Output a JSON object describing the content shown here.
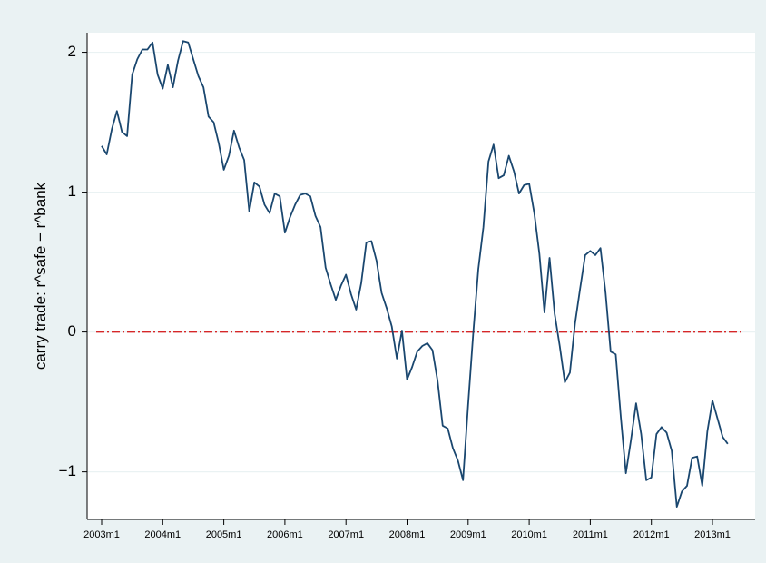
{
  "chart_data": {
    "type": "line",
    "y_label": "carry trade: r^safe − r^bank",
    "x": [
      "2003m1",
      "2003m2",
      "2003m3",
      "2003m4",
      "2003m5",
      "2003m6",
      "2003m7",
      "2003m8",
      "2003m9",
      "2003m10",
      "2003m11",
      "2003m12",
      "2004m1",
      "2004m2",
      "2004m3",
      "2004m4",
      "2004m5",
      "2004m6",
      "2004m7",
      "2004m8",
      "2004m9",
      "2004m10",
      "2004m11",
      "2004m12",
      "2005m1",
      "2005m2",
      "2005m3",
      "2005m4",
      "2005m5",
      "2005m6",
      "2005m7",
      "2005m8",
      "2005m9",
      "2005m10",
      "2005m11",
      "2005m12",
      "2006m1",
      "2006m2",
      "2006m3",
      "2006m4",
      "2006m5",
      "2006m6",
      "2006m7",
      "2006m8",
      "2006m9",
      "2006m10",
      "2006m11",
      "2006m12",
      "2007m1",
      "2007m2",
      "2007m3",
      "2007m4",
      "2007m5",
      "2007m6",
      "2007m7",
      "2007m8",
      "2007m9",
      "2007m10",
      "2007m11",
      "2007m12",
      "2008m1",
      "2008m2",
      "2008m3",
      "2008m4",
      "2008m5",
      "2008m6",
      "2008m7",
      "2008m8",
      "2008m9",
      "2008m10",
      "2008m11",
      "2008m12",
      "2009m1",
      "2009m2",
      "2009m3",
      "2009m4",
      "2009m5",
      "2009m6",
      "2009m7",
      "2009m8",
      "2009m9",
      "2009m10",
      "2009m11",
      "2009m12",
      "2010m1",
      "2010m2",
      "2010m3",
      "2010m4",
      "2010m5",
      "2010m6",
      "2010m7",
      "2010m8",
      "2010m9",
      "2010m10",
      "2010m11",
      "2010m12",
      "2011m1",
      "2011m2",
      "2011m3",
      "2011m4",
      "2011m5",
      "2011m6",
      "2011m7",
      "2011m8",
      "2011m9",
      "2011m10",
      "2011m11",
      "2011m12",
      "2012m1",
      "2012m2",
      "2012m3",
      "2012m4",
      "2012m5",
      "2012m6",
      "2012m7",
      "2012m8",
      "2012m9",
      "2012m10",
      "2012m11",
      "2012m12",
      "2013m1",
      "2013m2",
      "2013m3",
      "2013m4"
    ],
    "series": [
      {
        "color": "#1a476f",
        "values": [
          1.33,
          1.27,
          1.45,
          1.58,
          1.43,
          1.4,
          1.84,
          1.95,
          2.02,
          2.02,
          2.07,
          1.84,
          1.74,
          1.91,
          1.75,
          1.94,
          2.08,
          2.07,
          1.95,
          1.83,
          1.75,
          1.54,
          1.5,
          1.35,
          1.16,
          1.26,
          1.44,
          1.32,
          1.23,
          0.86,
          1.07,
          1.04,
          0.91,
          0.85,
          0.99,
          0.97,
          0.71,
          0.82,
          0.91,
          0.98,
          0.99,
          0.97,
          0.83,
          0.75,
          0.46,
          0.34,
          0.23,
          0.33,
          0.41,
          0.27,
          0.16,
          0.35,
          0.64,
          0.65,
          0.51,
          0.28,
          0.17,
          0.04,
          -0.19,
          0.01,
          -0.34,
          -0.25,
          -0.14,
          -0.1,
          -0.08,
          -0.13,
          -0.35,
          -0.67,
          -0.69,
          -0.83,
          -0.92,
          -1.06,
          -0.52,
          -0.01,
          0.45,
          0.75,
          1.22,
          1.34,
          1.1,
          1.12,
          1.26,
          1.15,
          0.99,
          1.05,
          1.06,
          0.85,
          0.56,
          0.14,
          0.53,
          0.13,
          -0.1,
          -0.36,
          -0.29,
          0.06,
          0.31,
          0.55,
          0.58,
          0.55,
          0.6,
          0.28,
          -0.14,
          -0.16,
          -0.61,
          -1.01,
          -0.77,
          -0.51,
          -0.73,
          -1.06,
          -1.04,
          -0.73,
          -0.68,
          -0.72,
          -0.85,
          -1.25,
          -1.14,
          -1.1,
          -0.9,
          -0.89,
          -1.1,
          -0.71,
          -0.49,
          -0.62,
          -0.75,
          -0.8
        ]
      }
    ],
    "xticks": [
      "2003m1",
      "2004m1",
      "2005m1",
      "2006m1",
      "2007m1",
      "2008m1",
      "2009m1",
      "2010m1",
      "2011m1",
      "2012m1",
      "2013m1"
    ],
    "ylim": [
      -1.34,
      2.14
    ],
    "yticks": [
      {
        "value": -1,
        "label": "−1"
      },
      0,
      1,
      2
    ],
    "grid": true,
    "reference_line": {
      "value": 0,
      "color": "#d62728"
    }
  }
}
